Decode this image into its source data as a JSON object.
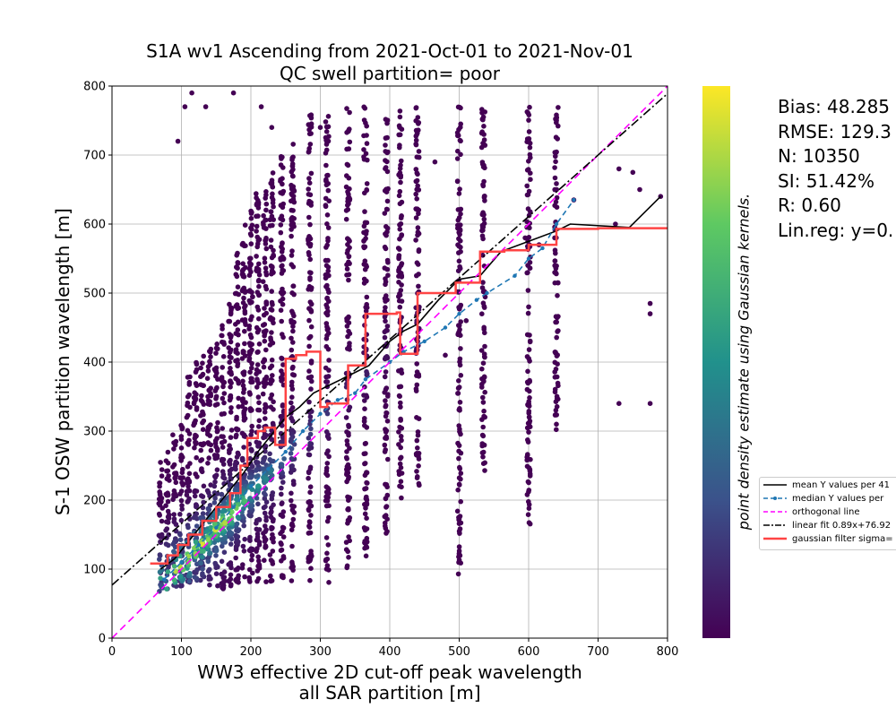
{
  "title_line1": "S1A wv1 Ascending from 2021-Oct-01 to 2021-Nov-01",
  "title_line2": "QC swell partition= poor",
  "colorbar_label": "point density estimate using Gaussian kernels.",
  "stats": {
    "bias": "Bias: 48.285",
    "rmse": "RMSE: 129.3",
    "n": "N: 10350",
    "si": "SI: 51.42%",
    "r": "R: 0.60",
    "linreg": "Lin.reg: y=0."
  },
  "legend": [
    {
      "label": "mean Y values per 41",
      "color": "#000000",
      "style": "solid"
    },
    {
      "label": "median Y values per",
      "color": "#1f77b4",
      "style": "dashed-dot"
    },
    {
      "label": "orthogonal line",
      "color": "#ff00ff",
      "style": "dashed"
    },
    {
      "label": "linear fit 0.89x+76.92",
      "color": "#000000",
      "style": "dashdot"
    },
    {
      "label": "gaussian filter sigma=",
      "color": "#ff4444",
      "style": "thick"
    }
  ],
  "chart_data": {
    "type": "scatter",
    "xlabel_line1": "WW3 effective 2D cut-off peak wavelength",
    "xlabel_line2": "all SAR partition [m]",
    "ylabel": "S-1 OSW partition wavelength [m]",
    "xlim": [
      0,
      800
    ],
    "ylim": [
      0,
      800
    ],
    "x_ticks": [
      0,
      100,
      200,
      300,
      400,
      500,
      600,
      700,
      800
    ],
    "y_ticks": [
      0,
      100,
      200,
      300,
      400,
      500,
      600,
      700,
      800
    ],
    "grid": true,
    "colormap": "viridis",
    "colormap_stops": [
      "#440154",
      "#3b528b",
      "#21918c",
      "#5ec962",
      "#fde725"
    ],
    "density_columns": [
      {
        "x": 70,
        "ymin": 65,
        "ymax": 260
      },
      {
        "x": 80,
        "ymin": 70,
        "ymax": 270
      },
      {
        "x": 90,
        "ymin": 75,
        "ymax": 300
      },
      {
        "x": 100,
        "ymin": 75,
        "ymax": 310
      },
      {
        "x": 110,
        "ymin": 80,
        "ymax": 390
      },
      {
        "x": 120,
        "ymin": 80,
        "ymax": 400
      },
      {
        "x": 130,
        "ymin": 80,
        "ymax": 420
      },
      {
        "x": 140,
        "ymin": 70,
        "ymax": 430
      },
      {
        "x": 150,
        "ymin": 75,
        "ymax": 440
      },
      {
        "x": 160,
        "ymin": 70,
        "ymax": 460
      },
      {
        "x": 170,
        "ymin": 75,
        "ymax": 520
      },
      {
        "x": 180,
        "ymin": 80,
        "ymax": 560
      },
      {
        "x": 190,
        "ymin": 80,
        "ymax": 600
      },
      {
        "x": 200,
        "ymin": 80,
        "ymax": 620
      },
      {
        "x": 210,
        "ymin": 80,
        "ymax": 650
      },
      {
        "x": 220,
        "ymin": 80,
        "ymax": 660
      },
      {
        "x": 230,
        "ymin": 80,
        "ymax": 680
      },
      {
        "x": 245,
        "ymin": 80,
        "ymax": 700
      },
      {
        "x": 260,
        "ymin": 80,
        "ymax": 720
      },
      {
        "x": 285,
        "ymin": 80,
        "ymax": 760
      },
      {
        "x": 310,
        "ymin": 80,
        "ymax": 760
      },
      {
        "x": 340,
        "ymin": 100,
        "ymax": 770
      },
      {
        "x": 365,
        "ymin": 110,
        "ymax": 770
      },
      {
        "x": 395,
        "ymin": 150,
        "ymax": 760
      },
      {
        "x": 415,
        "ymin": 200,
        "ymax": 770
      },
      {
        "x": 440,
        "ymin": 220,
        "ymax": 770
      },
      {
        "x": 500,
        "ymin": 90,
        "ymax": 770
      },
      {
        "x": 535,
        "ymin": 240,
        "ymax": 770
      },
      {
        "x": 600,
        "ymin": 165,
        "ymax": 770
      },
      {
        "x": 640,
        "ymin": 300,
        "ymax": 770
      }
    ],
    "scattered_points": [
      [
        95,
        720
      ],
      [
        105,
        770
      ],
      [
        115,
        790
      ],
      [
        135,
        770
      ],
      [
        175,
        790
      ],
      [
        215,
        770
      ],
      [
        230,
        740
      ],
      [
        300,
        740
      ],
      [
        465,
        690
      ],
      [
        480,
        410
      ],
      [
        510,
        460
      ],
      [
        595,
        580
      ],
      [
        600,
        480
      ],
      [
        600,
        720
      ],
      [
        615,
        570
      ],
      [
        640,
        310
      ],
      [
        665,
        635
      ],
      [
        730,
        340
      ],
      [
        730,
        680
      ],
      [
        750,
        675
      ],
      [
        775,
        485
      ],
      [
        775,
        470
      ],
      [
        775,
        340
      ],
      [
        790,
        640
      ],
      [
        760,
        650
      ],
      [
        725,
        600
      ]
    ],
    "series": [
      {
        "name": "mean Y values per 41",
        "color": "#000000",
        "dash": "",
        "x": [
          70,
          90,
          110,
          130,
          150,
          170,
          190,
          210,
          230,
          250,
          270,
          290,
          310,
          330,
          370,
          400,
          420,
          440,
          470,
          500,
          530,
          560,
          600,
          640,
          660,
          745,
          790
        ],
        "y": [
          100,
          115,
          140,
          165,
          190,
          215,
          240,
          270,
          295,
          320,
          335,
          355,
          365,
          375,
          395,
          430,
          445,
          455,
          490,
          520,
          525,
          560,
          575,
          590,
          600,
          595,
          640
        ]
      },
      {
        "name": "median Y values per",
        "color": "#1f77b4",
        "dash": "6,4",
        "x": [
          75,
          100,
          125,
          150,
          175,
          200,
          225,
          250,
          275,
          300,
          325,
          350,
          365,
          400,
          420,
          450,
          480,
          500,
          525,
          540,
          580,
          600,
          620,
          640,
          665
        ],
        "y": [
          85,
          110,
          135,
          160,
          190,
          220,
          245,
          270,
          300,
          325,
          345,
          355,
          375,
          400,
          415,
          430,
          450,
          470,
          490,
          500,
          525,
          550,
          565,
          600,
          635
        ]
      },
      {
        "name": "orthogonal line",
        "color": "#ff00ff",
        "dash": "8,5",
        "x": [
          0,
          800
        ],
        "y": [
          0,
          800
        ]
      },
      {
        "name": "linear fit 0.89x+76.92",
        "color": "#000000",
        "dash": "10,3,2,3",
        "x": [
          0,
          800
        ],
        "y": [
          76.92,
          788.92
        ]
      },
      {
        "name": "gaussian filter sigma=",
        "color": "#ff4444",
        "dash": "",
        "width": 2.5,
        "x": [
          55,
          80,
          80,
          95,
          95,
          110,
          110,
          130,
          130,
          150,
          150,
          170,
          170,
          185,
          185,
          195,
          195,
          210,
          210,
          220,
          220,
          235,
          235,
          250,
          250,
          265,
          265,
          280,
          280,
          300,
          300,
          310,
          310,
          340,
          340,
          365,
          365,
          410,
          410,
          415,
          415,
          440,
          440,
          495,
          495,
          530,
          530,
          565,
          565,
          600,
          600,
          640,
          640,
          700,
          700,
          800
        ],
        "y": [
          108,
          108,
          120,
          120,
          135,
          135,
          150,
          150,
          170,
          170,
          190,
          190,
          210,
          210,
          250,
          250,
          290,
          290,
          300,
          300,
          305,
          305,
          280,
          280,
          405,
          405,
          410,
          410,
          415,
          415,
          335,
          335,
          340,
          340,
          395,
          395,
          470,
          470,
          472,
          472,
          412,
          412,
          500,
          500,
          515,
          515,
          560,
          560,
          562,
          562,
          570,
          570,
          593,
          593,
          594,
          594
        ]
      }
    ]
  }
}
